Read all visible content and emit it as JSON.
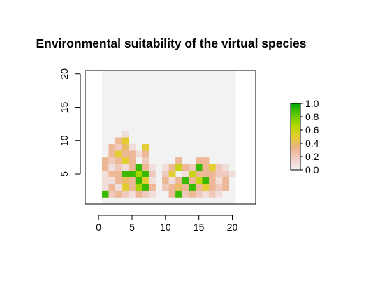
{
  "chart_data": {
    "type": "heatmap",
    "title": "Environmental suitability of the virtual species",
    "xlabel": "",
    "ylabel": "",
    "xlim": [
      -2,
      23.5
    ],
    "ylim": [
      0.5,
      20.5
    ],
    "x_ticks": [
      0,
      5,
      10,
      15,
      20
    ],
    "x_tick_labels": [
      "0",
      "5",
      "10",
      "15",
      "20"
    ],
    "y_ticks": [
      5,
      10,
      15,
      20
    ],
    "y_tick_labels": [
      "5",
      "10",
      "15",
      "20"
    ],
    "raster_extent": {
      "xmin": 0.5,
      "xmax": 20.5,
      "ymin": 0.5,
      "ymax": 20.5
    },
    "background_color": "#f2f2f2",
    "legend": {
      "position": "right",
      "min": 0.0,
      "max": 1.0,
      "tick_values": [
        0.0,
        0.2,
        0.4,
        0.6,
        0.8,
        1.0
      ],
      "tick_labels": [
        "0.0",
        "0.2",
        "0.4",
        "0.6",
        "0.8",
        "1.0"
      ],
      "colors": [
        "#f2f2f2",
        "#f0cfc8",
        "#ecb288",
        "#e4cc33",
        "#b4d800",
        "#5fc800",
        "#00a600"
      ]
    },
    "cells": [
      {
        "x": 3,
        "y": 10,
        "v": 0.1
      },
      {
        "x": 2,
        "y": 9,
        "v": 0.3
      },
      {
        "x": 3,
        "y": 9,
        "v": 0.5
      },
      {
        "x": 1,
        "y": 8,
        "v": 0.3
      },
      {
        "x": 2,
        "y": 8,
        "v": 0.2
      },
      {
        "x": 3,
        "y": 8,
        "v": 0.4
      },
      {
        "x": 4,
        "y": 8,
        "v": 0.1
      },
      {
        "x": 6,
        "y": 8,
        "v": 0.5
      },
      {
        "x": 1,
        "y": 7,
        "v": 0.3
      },
      {
        "x": 2,
        "y": 7,
        "v": 0.5
      },
      {
        "x": 3,
        "y": 7,
        "v": 0.3
      },
      {
        "x": 4,
        "y": 7,
        "v": 0.3
      },
      {
        "x": 5,
        "y": 7,
        "v": 0.1
      },
      {
        "x": 6,
        "y": 7,
        "v": 0.3
      },
      {
        "x": 0,
        "y": 6,
        "v": 0.3
      },
      {
        "x": 1,
        "y": 6,
        "v": 0.2
      },
      {
        "x": 2,
        "y": 6,
        "v": 0.3
      },
      {
        "x": 3,
        "y": 6,
        "v": 0.5
      },
      {
        "x": 4,
        "y": 6,
        "v": 0.3
      },
      {
        "x": 6,
        "y": 6,
        "v": 0.2
      },
      {
        "x": 11,
        "y": 6,
        "v": 0.3
      },
      {
        "x": 14,
        "y": 6,
        "v": 0.3
      },
      {
        "x": 15,
        "y": 6,
        "v": 0.3
      },
      {
        "x": 0,
        "y": 5,
        "v": 0.3
      },
      {
        "x": 1,
        "y": 5,
        "v": 0.1
      },
      {
        "x": 2,
        "y": 5,
        "v": 0.2
      },
      {
        "x": 3,
        "y": 5,
        "v": 0.1
      },
      {
        "x": 4,
        "y": 5,
        "v": 0.3
      },
      {
        "x": 5,
        "y": 5,
        "v": 0.9
      },
      {
        "x": 6,
        "y": 5,
        "v": 0.3
      },
      {
        "x": 7,
        "y": 5,
        "v": 0.1
      },
      {
        "x": 9,
        "y": 5,
        "v": 0.1
      },
      {
        "x": 10,
        "y": 5,
        "v": 0.3
      },
      {
        "x": 11,
        "y": 5,
        "v": 0.6
      },
      {
        "x": 12,
        "y": 5,
        "v": 0.3
      },
      {
        "x": 13,
        "y": 5,
        "v": 0.2
      },
      {
        "x": 14,
        "y": 5,
        "v": 0.9
      },
      {
        "x": 15,
        "y": 5,
        "v": 0.3
      },
      {
        "x": 16,
        "y": 5,
        "v": 0.5
      },
      {
        "x": 17,
        "y": 5,
        "v": 0.2
      },
      {
        "x": 18,
        "y": 5,
        "v": 0.1
      },
      {
        "x": 0,
        "y": 4,
        "v": 0.1
      },
      {
        "x": 1,
        "y": 4,
        "v": 0.3
      },
      {
        "x": 2,
        "y": 4,
        "v": 0.3
      },
      {
        "x": 3,
        "y": 4,
        "v": 0.9
      },
      {
        "x": 4,
        "y": 4,
        "v": 0.9
      },
      {
        "x": 5,
        "y": 4,
        "v": 0.7
      },
      {
        "x": 6,
        "y": 4,
        "v": 0.9
      },
      {
        "x": 7,
        "y": 4,
        "v": 0.2
      },
      {
        "x": 9,
        "y": 4,
        "v": 0.2
      },
      {
        "x": 10,
        "y": 4,
        "v": 0.5
      },
      {
        "x": 12,
        "y": 4,
        "v": 0.1
      },
      {
        "x": 13,
        "y": 4,
        "v": 0.6
      },
      {
        "x": 14,
        "y": 4,
        "v": 0.3
      },
      {
        "x": 15,
        "y": 4,
        "v": 0.3
      },
      {
        "x": 16,
        "y": 4,
        "v": 0.3
      },
      {
        "x": 17,
        "y": 4,
        "v": 0.2
      },
      {
        "x": 18,
        "y": 4,
        "v": 0.2
      },
      {
        "x": 19,
        "y": 4,
        "v": 0.1
      },
      {
        "x": 0,
        "y": 3,
        "v": 0.1
      },
      {
        "x": 1,
        "y": 3,
        "v": 0.1
      },
      {
        "x": 2,
        "y": 3,
        "v": 0.3
      },
      {
        "x": 3,
        "y": 3,
        "v": 0.4
      },
      {
        "x": 4,
        "y": 3,
        "v": 0.3
      },
      {
        "x": 5,
        "y": 3,
        "v": 0.9
      },
      {
        "x": 6,
        "y": 3,
        "v": 0.5
      },
      {
        "x": 7,
        "y": 3,
        "v": 0.1
      },
      {
        "x": 9,
        "y": 3,
        "v": 0.3
      },
      {
        "x": 10,
        "y": 3,
        "v": 0.1
      },
      {
        "x": 11,
        "y": 3,
        "v": 0.3
      },
      {
        "x": 12,
        "y": 3,
        "v": 0.9
      },
      {
        "x": 13,
        "y": 3,
        "v": 0.3
      },
      {
        "x": 14,
        "y": 3,
        "v": 0.6
      },
      {
        "x": 15,
        "y": 3,
        "v": 0.9
      },
      {
        "x": 16,
        "y": 3,
        "v": 0.3
      },
      {
        "x": 17,
        "y": 3,
        "v": 0.1
      },
      {
        "x": 18,
        "y": 3,
        "v": 0.3
      },
      {
        "x": 0,
        "y": 2,
        "v": 0.1
      },
      {
        "x": 1,
        "y": 2,
        "v": 0.3
      },
      {
        "x": 2,
        "y": 2,
        "v": 0.1
      },
      {
        "x": 3,
        "y": 2,
        "v": 0.5
      },
      {
        "x": 4,
        "y": 2,
        "v": 0.3
      },
      {
        "x": 5,
        "y": 2,
        "v": 0.7
      },
      {
        "x": 6,
        "y": 2,
        "v": 0.9
      },
      {
        "x": 7,
        "y": 2,
        "v": 0.3
      },
      {
        "x": 9,
        "y": 2,
        "v": 0.2
      },
      {
        "x": 10,
        "y": 2,
        "v": 0.3
      },
      {
        "x": 11,
        "y": 2,
        "v": 0.4
      },
      {
        "x": 12,
        "y": 2,
        "v": 0.3
      },
      {
        "x": 13,
        "y": 2,
        "v": 0.9
      },
      {
        "x": 14,
        "y": 2,
        "v": 0.3
      },
      {
        "x": 15,
        "y": 2,
        "v": 0.5
      },
      {
        "x": 16,
        "y": 2,
        "v": 0.3
      },
      {
        "x": 17,
        "y": 2,
        "v": 0.2
      },
      {
        "x": 18,
        "y": 2,
        "v": 0.3
      },
      {
        "x": 0,
        "y": 1,
        "v": 0.9
      },
      {
        "x": 1,
        "y": 1,
        "v": 0.2
      },
      {
        "x": 2,
        "y": 1,
        "v": 0.3
      },
      {
        "x": 3,
        "y": 1,
        "v": 0.2
      },
      {
        "x": 4,
        "y": 1,
        "v": 0.1
      },
      {
        "x": 5,
        "y": 1,
        "v": 0.3
      },
      {
        "x": 6,
        "y": 1,
        "v": 0.2
      },
      {
        "x": 7,
        "y": 1,
        "v": 0.1
      },
      {
        "x": 10,
        "y": 1,
        "v": 0.3
      },
      {
        "x": 11,
        "y": 1,
        "v": 0.9
      },
      {
        "x": 12,
        "y": 1,
        "v": 0.2
      },
      {
        "x": 13,
        "y": 1,
        "v": 0.3
      },
      {
        "x": 14,
        "y": 1,
        "v": 0.2
      },
      {
        "x": 15,
        "y": 1,
        "v": 0.1
      },
      {
        "x": 16,
        "y": 1,
        "v": 0.2
      },
      {
        "x": 17,
        "y": 1,
        "v": 0.1
      }
    ]
  }
}
